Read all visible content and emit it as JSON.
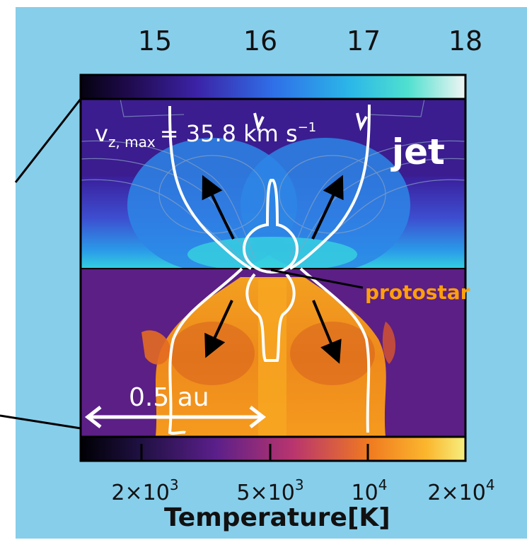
{
  "colors": {
    "panel_bg": "#87ceeb",
    "jet_label": "#ffffff",
    "protostar_label": "#ff9f0a",
    "contour": "#ffffff"
  },
  "top_colorbar": {
    "ticks": [
      "15",
      "16",
      "17",
      "18"
    ]
  },
  "bottom_colorbar": {
    "ticks": [
      {
        "base": "2×10",
        "exp": "3"
      },
      {
        "base": "5×10",
        "exp": "3"
      },
      {
        "base": "10",
        "exp": "4"
      },
      {
        "base": "2×10",
        "exp": "4"
      }
    ],
    "label": "Temperature[K]"
  },
  "annotations": {
    "vmax": "v",
    "vmax_sub": "z, max",
    "vmax_value": "= 35.8 km s",
    "vmax_exp": "−1",
    "jet": "jet",
    "protostar": "protostar",
    "scale": "0.5 au"
  },
  "icons": {
    "arrow": "arrow-icon",
    "double_arrow": "double-arrow-icon"
  }
}
